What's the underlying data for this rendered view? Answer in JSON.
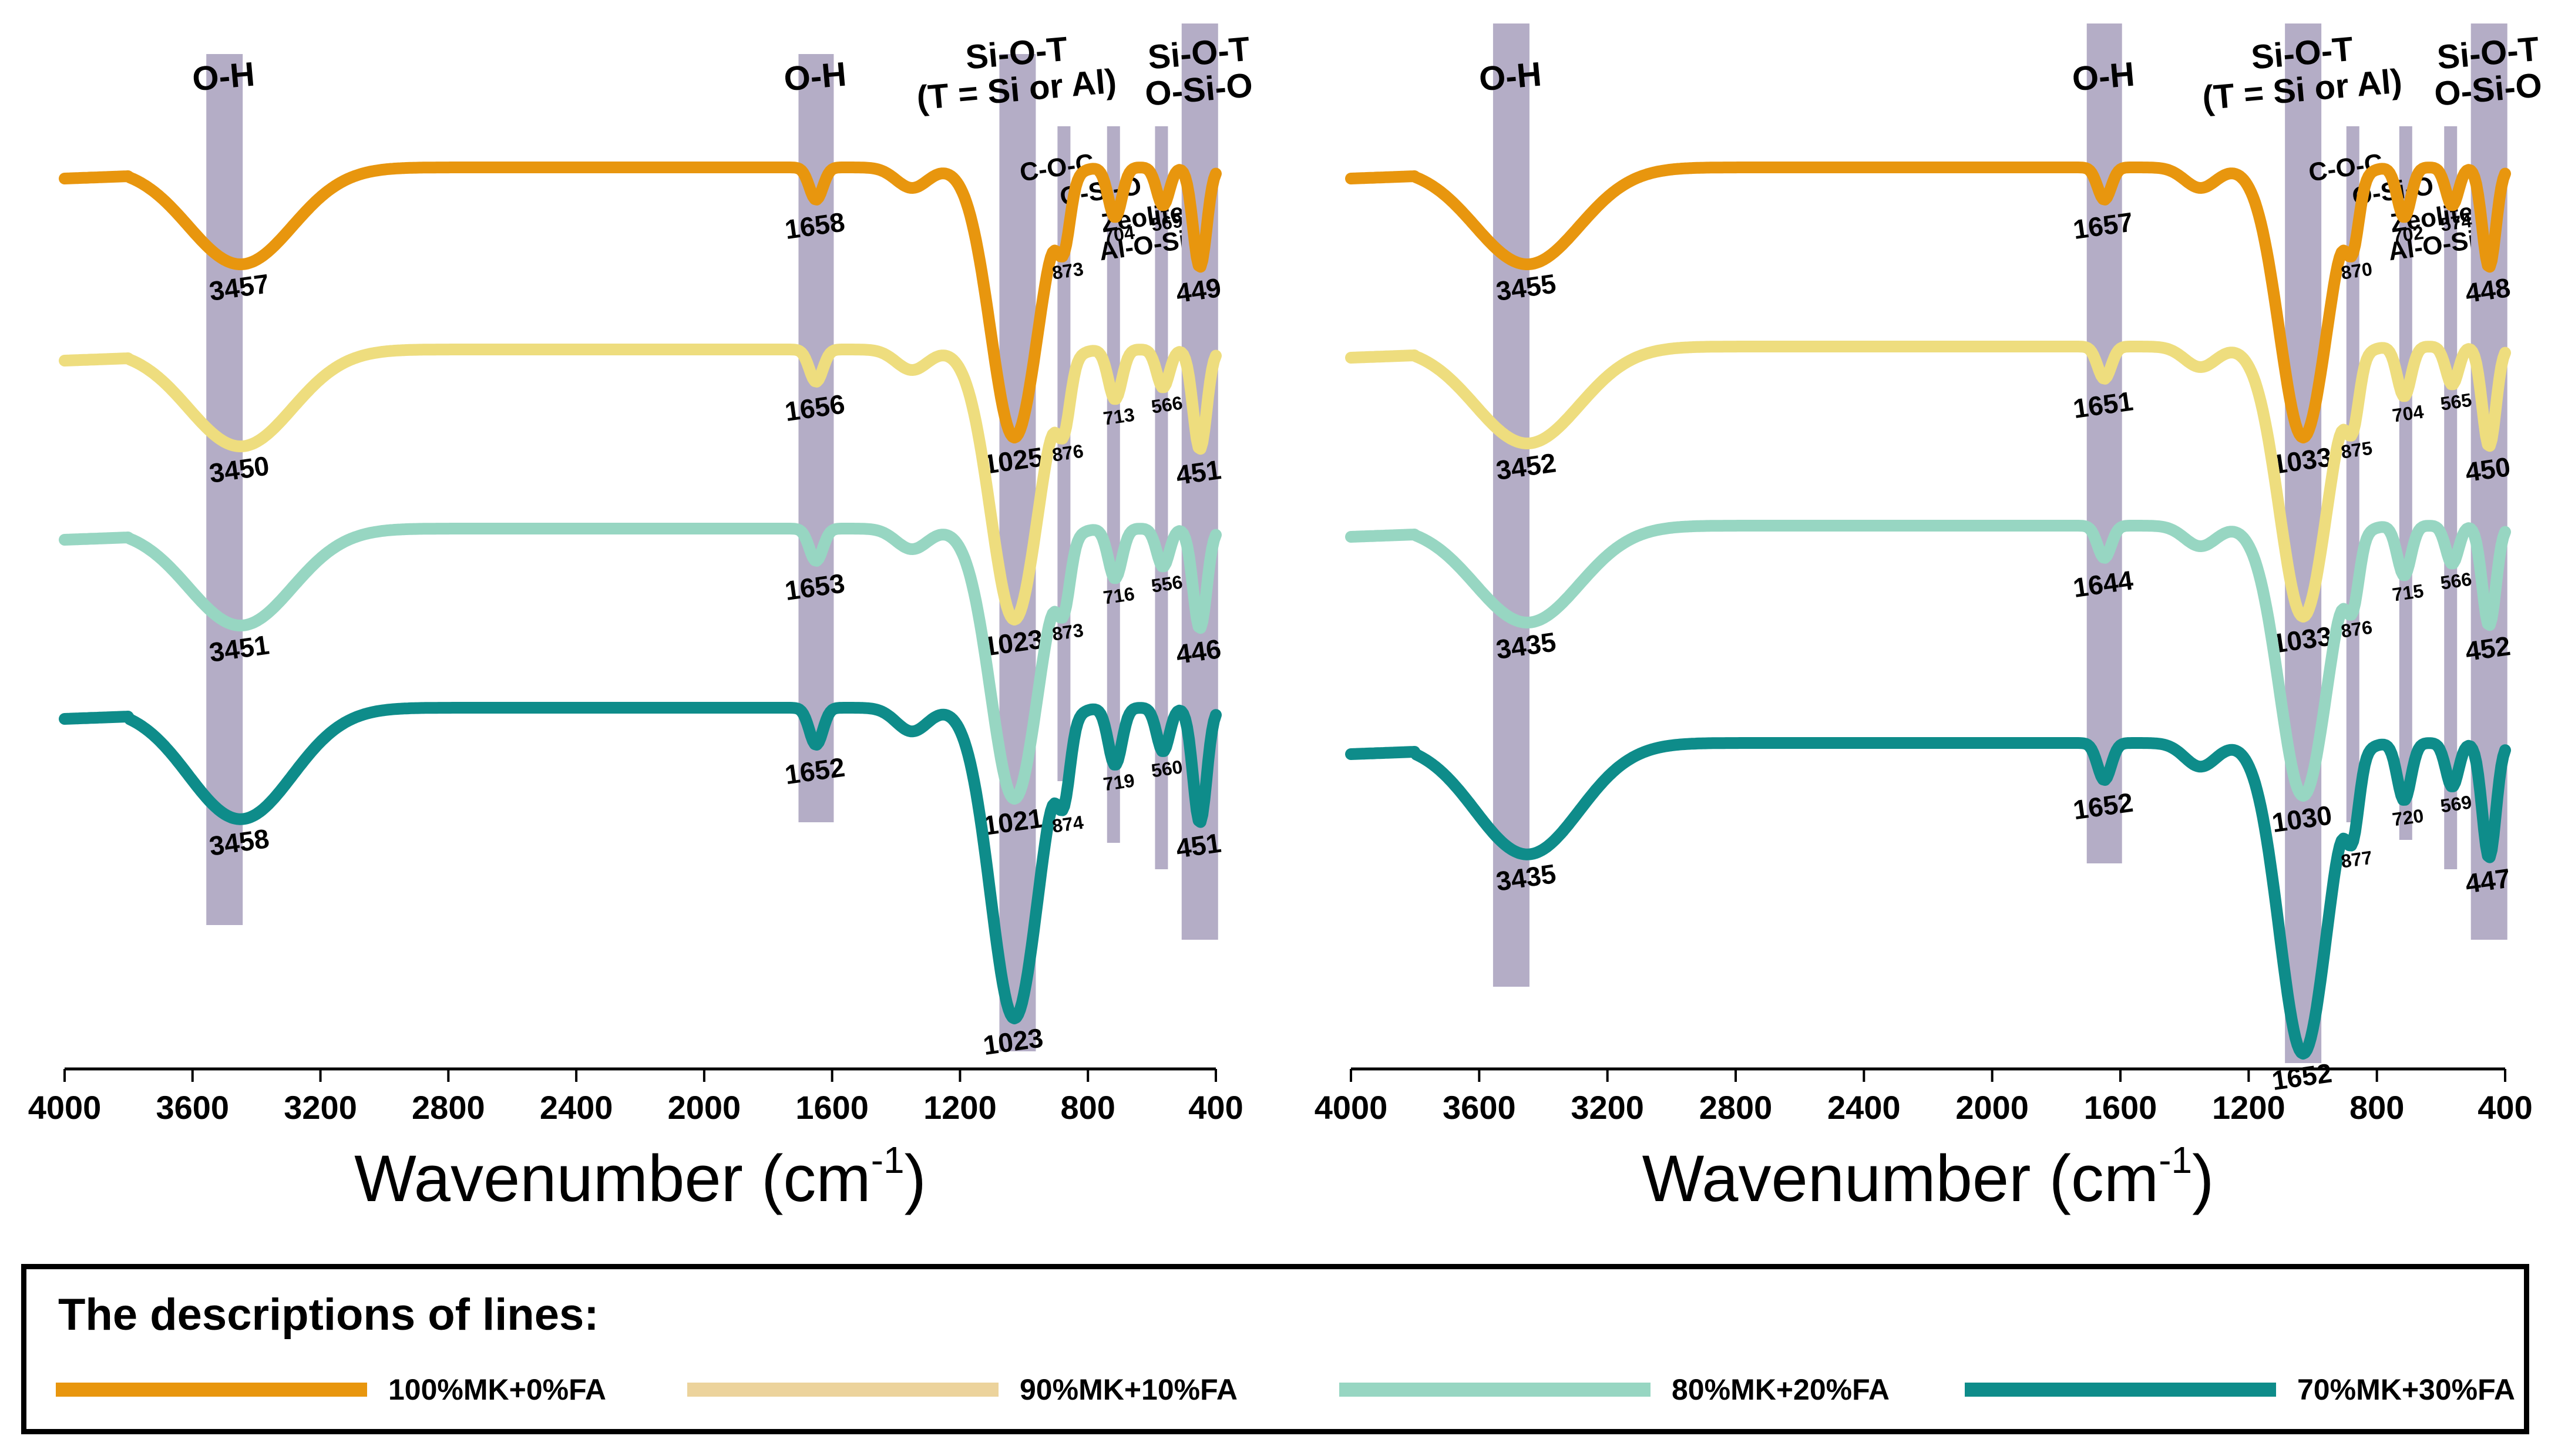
{
  "chart_data": [
    {
      "type": "line",
      "panel": "left",
      "xlabel": "Wavenumber",
      "xlabel_unit": "(cm",
      "xlabel_unit_sup": "-1",
      "xlabel_unit_close": ")",
      "xlim": [
        4000,
        400
      ],
      "x_reversed": true,
      "xticks": [
        "4000",
        "3600",
        "3200",
        "2800",
        "2400",
        "2000",
        "1600",
        "1200",
        "800",
        "400"
      ],
      "bands": [
        {
          "id": "oh1",
          "label": "O-H",
          "center": 3500
        },
        {
          "id": "oh2",
          "label": "O-H",
          "center": 1650
        },
        {
          "id": "siot",
          "label": "Si-O-T",
          "label2": "(T = Si or Al)",
          "center": 1020
        },
        {
          "id": "coc",
          "label": "C-O-C",
          "center": 875
        },
        {
          "id": "osio",
          "label": "O-Si-O",
          "center": 720
        },
        {
          "id": "zeo",
          "label": "Zeolite",
          "label2": "Al-O-Si",
          "center": 570
        },
        {
          "id": "siot2",
          "label": "Si-O-T",
          "label2": "O-Si-O",
          "center": 450
        }
      ],
      "series": [
        {
          "name": "100%MK+0%FA",
          "peaks": [
            "3457",
            "1658",
            "1025",
            "873",
            "704",
            "569",
            "449"
          ]
        },
        {
          "name": "90%MK+10%FA",
          "peaks": [
            "3450",
            "1656",
            "1023",
            "876",
            "713",
            "566",
            "451"
          ]
        },
        {
          "name": "80%MK+20%FA",
          "peaks": [
            "3451",
            "1653",
            "1021",
            "873",
            "716",
            "556",
            "446"
          ]
        },
        {
          "name": "70%MK+30%FA",
          "peaks": [
            "3458",
            "1652",
            "1023",
            "874",
            "719",
            "560",
            "451"
          ]
        }
      ]
    },
    {
      "type": "line",
      "panel": "right",
      "xlabel": "Wavenumber",
      "xlabel_unit": "(cm",
      "xlabel_unit_sup": "-1",
      "xlabel_unit_close": ")",
      "xlim": [
        4000,
        400
      ],
      "x_reversed": true,
      "xticks": [
        "4000",
        "3600",
        "3200",
        "2800",
        "2400",
        "2000",
        "1600",
        "1200",
        "800",
        "400"
      ],
      "bands": [
        {
          "id": "oh1",
          "label": "O-H",
          "center": 3500
        },
        {
          "id": "oh2",
          "label": "O-H",
          "center": 1650
        },
        {
          "id": "siot",
          "label": "Si-O-T",
          "label2": "(T = Si or Al)",
          "center": 1030
        },
        {
          "id": "coc",
          "label": "C-O-C",
          "center": 875
        },
        {
          "id": "osio",
          "label": "O-Si-O",
          "center": 710
        },
        {
          "id": "zeo",
          "label": "Zeolite",
          "label2": "Al-O-Si",
          "center": 570
        },
        {
          "id": "siot2",
          "label": "Si-O-T",
          "label2": "O-Si-O",
          "center": 450
        }
      ],
      "series": [
        {
          "name": "100%MK+0%FA",
          "peaks": [
            "3455",
            "1657",
            "1033",
            "870",
            "702",
            "574",
            "448"
          ]
        },
        {
          "name": "90%MK+10%FA",
          "peaks": [
            "3452",
            "1651",
            "1033",
            "875",
            "704",
            "565",
            "450"
          ]
        },
        {
          "name": "80%MK+20%FA",
          "peaks": [
            "3435",
            "1644",
            "1030",
            "876",
            "715",
            "566",
            "452"
          ]
        },
        {
          "name": "70%MK+30%FA",
          "peaks": [
            "3435",
            "1652",
            "1652",
            "877",
            "720",
            "569",
            "447"
          ]
        }
      ]
    }
  ],
  "legend": {
    "title": "The descriptions of lines:",
    "items": [
      {
        "label": "100%MK+0%FA",
        "color": "#e8960e"
      },
      {
        "label": "90%MK+10%FA",
        "color": "#ecd39c"
      },
      {
        "label": "80%MK+20%FA",
        "color": "#97d6c2"
      },
      {
        "label": "70%MK+30%FA",
        "color": "#0e8c8a"
      }
    ]
  },
  "series_colors": [
    "#e8960e",
    "#eedd7e",
    "#97d6c2",
    "#0e8c8a"
  ],
  "band_color": "#b4adc6"
}
